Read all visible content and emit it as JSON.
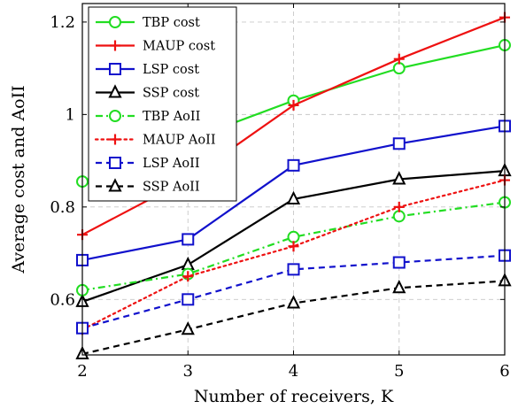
{
  "chart_data": {
    "type": "line",
    "xlabel": "Number of receivers, K",
    "ylabel": "Average cost and AoII",
    "x": [
      2,
      3,
      4,
      5,
      6
    ],
    "xlim": [
      2,
      6
    ],
    "ylim": [
      0.48,
      1.24
    ],
    "xticks": [
      "2",
      "3",
      "4",
      "5",
      "6"
    ],
    "yticks": [
      {
        "value": 0.6,
        "label": "0.6"
      },
      {
        "value": 0.8,
        "label": "0.8"
      },
      {
        "value": 1.0,
        "label": "1"
      },
      {
        "value": 1.2,
        "label": "1.2"
      }
    ],
    "grid": true,
    "legend_position": "top-left",
    "series": [
      {
        "name": "TBP cost",
        "color": "#22dd22",
        "dash": "solid",
        "marker": "circle",
        "values": [
          0.855,
          0.945,
          1.03,
          1.1,
          1.15
        ]
      },
      {
        "name": "MAUP cost",
        "color": "#ee1111",
        "dash": "solid",
        "marker": "plus",
        "values": [
          0.74,
          0.86,
          1.02,
          1.12,
          1.21
        ]
      },
      {
        "name": "LSP cost",
        "color": "#1111cc",
        "dash": "solid",
        "marker": "square",
        "values": [
          0.685,
          0.73,
          0.89,
          0.937,
          0.975
        ]
      },
      {
        "name": "SSP cost",
        "color": "#000000",
        "dash": "solid",
        "marker": "triangle",
        "values": [
          0.595,
          0.675,
          0.817,
          0.86,
          0.878
        ]
      },
      {
        "name": "TBP AoII",
        "color": "#22dd22",
        "dash": "dashdot",
        "marker": "circle",
        "values": [
          0.62,
          0.655,
          0.735,
          0.78,
          0.81
        ]
      },
      {
        "name": "MAUP AoII",
        "color": "#ee1111",
        "dash": "dotted",
        "marker": "plus",
        "values": [
          0.535,
          0.65,
          0.715,
          0.8,
          0.858
        ]
      },
      {
        "name": "LSP AoII",
        "color": "#1111cc",
        "dash": "dashed",
        "marker": "square",
        "values": [
          0.538,
          0.6,
          0.665,
          0.68,
          0.695
        ]
      },
      {
        "name": "SSP AoII",
        "color": "#000000",
        "dash": "dashed",
        "marker": "triangle",
        "values": [
          0.482,
          0.535,
          0.592,
          0.625,
          0.64
        ]
      }
    ]
  }
}
